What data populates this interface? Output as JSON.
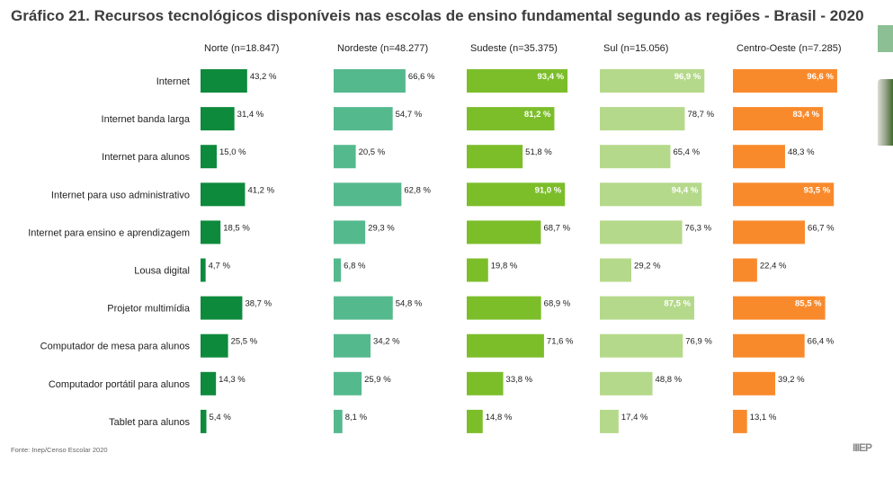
{
  "title": "Gráfico 21. Recursos tecnológicos disponíveis nas escolas de ensino fundamental segundo as regiões - Brasil - 2020",
  "source": "Fonte: Inep/Censo Escolar 2020",
  "logo_text": "IIIEP",
  "chart_data": {
    "type": "bar",
    "orientation": "horizontal",
    "title": "Gráfico 21. Recursos tecnológicos disponíveis nas escolas de ensino fundamental segundo as regiões - Brasil - 2020",
    "unit": "%",
    "categories": [
      "Internet",
      "Internet banda larga",
      "Internet para alunos",
      "Internet para uso administrativo",
      "Internet para ensino e aprendizagem",
      "Lousa digital",
      "Projetor multimídia",
      "Computador de mesa para alunos",
      "Computador portátil para alunos",
      "Tablet para alunos"
    ],
    "series": [
      {
        "name": "Norte (n=18.847)",
        "color": "#0e8a3c",
        "values": [
          43.2,
          31.4,
          15.0,
          41.2,
          18.5,
          4.7,
          38.7,
          25.5,
          14.3,
          5.4
        ],
        "labels": [
          "43,2 %",
          "31,4 %",
          "15,0 %",
          "41,2 %",
          "18,5 %",
          "4,7 %",
          "38,7 %",
          "25,5 %",
          "14,3 %",
          "5,4 %"
        ]
      },
      {
        "name": "Nordeste (n=48.277)",
        "color": "#55b98e",
        "values": [
          66.6,
          54.7,
          20.5,
          62.8,
          29.3,
          6.8,
          54.8,
          34.2,
          25.9,
          8.1
        ],
        "labels": [
          "66,6 %",
          "54,7 %",
          "20,5 %",
          "62,8 %",
          "29,3 %",
          "6,8 %",
          "54,8 %",
          "34,2 %",
          "25,9 %",
          "8,1 %"
        ]
      },
      {
        "name": "Sudeste (n=35.375)",
        "color": "#7cbe2a",
        "values": [
          93.4,
          81.2,
          51.8,
          91.0,
          68.7,
          19.8,
          68.9,
          71.6,
          33.8,
          14.8
        ],
        "labels": [
          "93,4 %",
          "81,2 %",
          "51,8 %",
          "91,0 %",
          "68,7 %",
          "19,8 %",
          "68,9 %",
          "71,6 %",
          "33,8 %",
          "14,8 %"
        ]
      },
      {
        "name": "Sul (n=15.056)",
        "color": "#b5d98a",
        "values": [
          96.9,
          78.7,
          65.4,
          94.4,
          76.3,
          29.2,
          87.5,
          76.9,
          48.8,
          17.4
        ],
        "labels": [
          "96,9 %",
          "78,7 %",
          "65,4 %",
          "94,4 %",
          "76,3 %",
          "29,2 %",
          "87,5 %",
          "76,9 %",
          "48,8 %",
          "17,4 %"
        ]
      },
      {
        "name": "Centro-Oeste (n=7.285)",
        "color": "#f98a2c",
        "values": [
          96.6,
          83.4,
          48.3,
          93.5,
          66.7,
          22.4,
          85.5,
          66.4,
          39.2,
          13.1
        ],
        "labels": [
          "96,6 %",
          "83,4 %",
          "48,3 %",
          "93,5 %",
          "66,7 %",
          "22,4 %",
          "85,5 %",
          "66,4 %",
          "39,2 %",
          "13,1 %"
        ]
      }
    ],
    "xlim": [
      0,
      100
    ],
    "legend": "column headers",
    "grid": false
  }
}
